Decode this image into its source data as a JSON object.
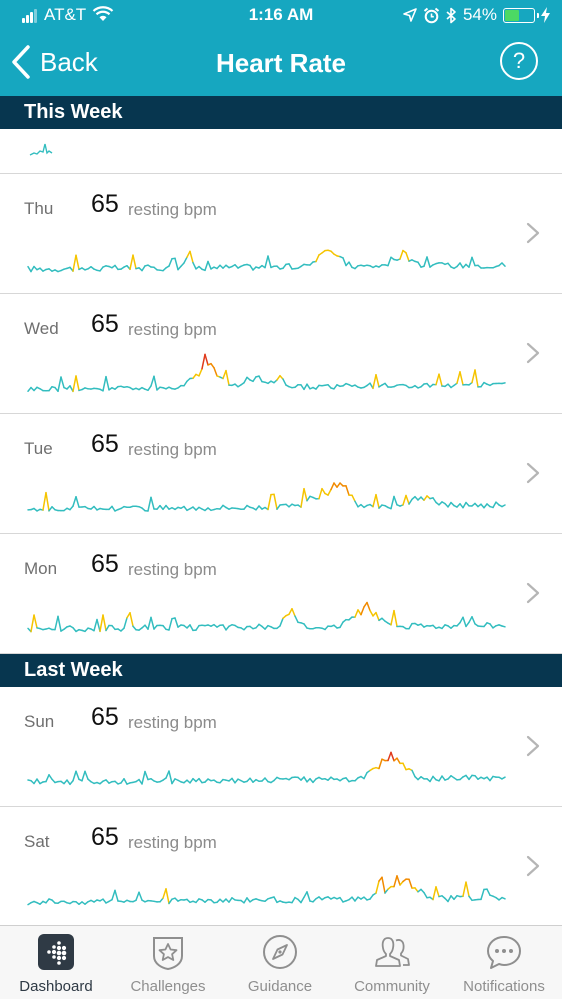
{
  "status_bar": {
    "carrier": "AT&T",
    "time": "1:16 AM",
    "battery": "54%",
    "battery_level": 0.54
  },
  "nav": {
    "back_label": "Back",
    "title": "Heart Rate",
    "help_label": "?"
  },
  "sections": {
    "this_week": "This Week",
    "last_week": "Last Week"
  },
  "days": [
    {
      "day": "Thu",
      "bpm": "65",
      "unit": "resting bpm"
    },
    {
      "day": "Wed",
      "bpm": "65",
      "unit": "resting bpm"
    },
    {
      "day": "Tue",
      "bpm": "65",
      "unit": "resting bpm"
    },
    {
      "day": "Mon",
      "bpm": "65",
      "unit": "resting bpm"
    },
    {
      "day": "Sun",
      "bpm": "65",
      "unit": "resting bpm"
    },
    {
      "day": "Sat",
      "bpm": "65",
      "unit": "resting bpm"
    }
  ],
  "chart_colors": {
    "resting": "#33bdbf",
    "elevated": "#f5c400",
    "high": "#f18a00",
    "peak": "#e03a1c"
  },
  "tabs": [
    {
      "label": "Dashboard",
      "icon": "dashboard-icon",
      "active": true
    },
    {
      "label": "Challenges",
      "icon": "star-badge-icon",
      "active": false
    },
    {
      "label": "Guidance",
      "icon": "compass-icon",
      "active": false
    },
    {
      "label": "Community",
      "icon": "people-icon",
      "active": false
    },
    {
      "label": "Notifications",
      "icon": "chat-bubble-icon",
      "active": false
    }
  ],
  "colors": {
    "header_teal": "#16a7c0",
    "section_navy": "#07364f"
  }
}
